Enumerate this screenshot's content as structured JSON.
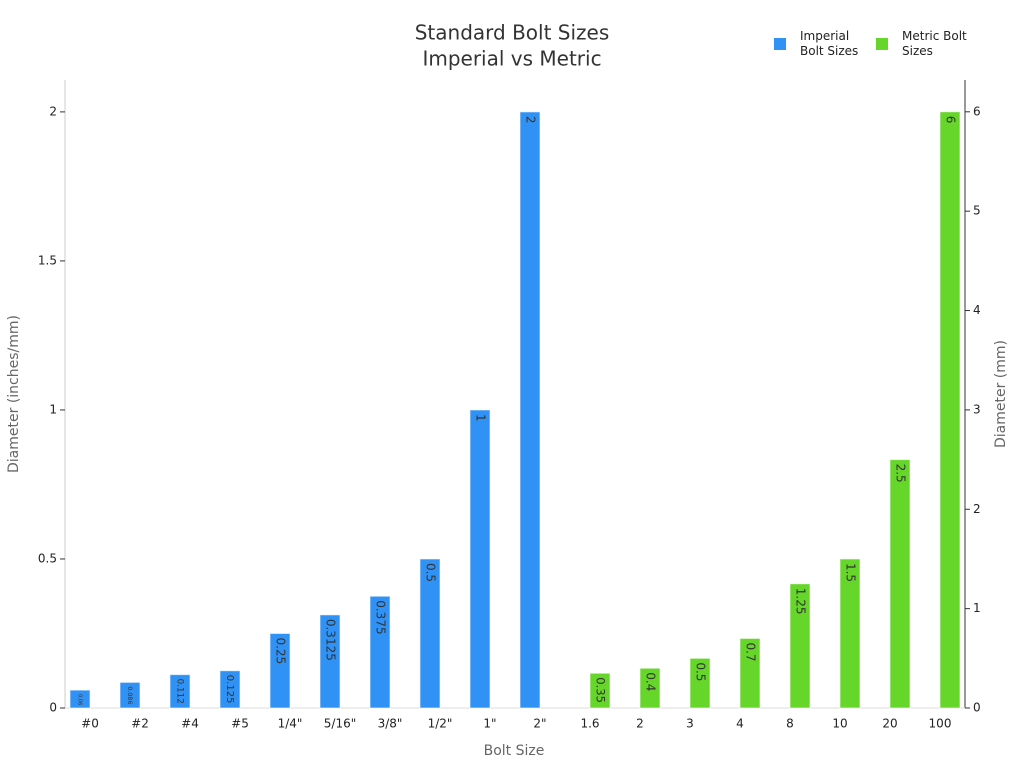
{
  "chart_data": {
    "type": "bar",
    "title": "Standard Bolt Sizes",
    "subtitle": "Imperial vs Metric",
    "x_label": "Bolt Size",
    "y_label": "Diameter (inches/mm)",
    "y2_label": "Diameter (mm)",
    "categories": [
      "#0",
      "#2",
      "#4",
      "#5",
      "1/4\"",
      "5/16\"",
      "3/8\"",
      "1/2\"",
      "1\"",
      "2\"",
      "1.6",
      "2",
      "3",
      "4",
      "8",
      "10",
      "20",
      "100"
    ],
    "series": [
      {
        "name": "Imperial Bolt Sizes",
        "color": "#3192f5",
        "values": [
          0.06,
          0.086,
          0.112,
          0.125,
          0.25,
          0.3125,
          0.375,
          0.5,
          1,
          2,
          null,
          null,
          null,
          null,
          null,
          null,
          null,
          null
        ]
      },
      {
        "name": "Metric Bolt Sizes",
        "color": "#66d62a",
        "axis": "y2",
        "values": [
          null,
          null,
          null,
          null,
          null,
          null,
          null,
          null,
          null,
          null,
          0.35,
          0.4,
          0.5,
          0.7,
          1.25,
          1.5,
          2.5,
          6
        ]
      }
    ],
    "ylim": [
      0,
      2.107
    ],
    "yticks": [
      0,
      0.5,
      1,
      1.5,
      2
    ],
    "y2lim": [
      0,
      6.32
    ],
    "y2ticks": [
      0,
      1,
      2,
      3,
      4,
      5,
      6
    ],
    "grid": false
  }
}
